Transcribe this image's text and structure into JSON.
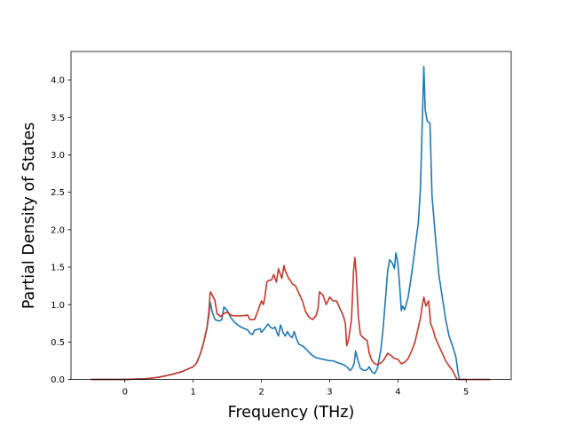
{
  "chart_data": {
    "type": "line",
    "xlabel": "Frequency (THz)",
    "ylabel": "Partial Density of States",
    "xlim": [
      -0.79,
      5.66
    ],
    "ylim": [
      0.0,
      4.38
    ],
    "xticks": [
      0,
      1,
      2,
      3,
      4,
      5
    ],
    "xtick_labels": [
      "0",
      "1",
      "2",
      "3",
      "4",
      "5"
    ],
    "yticks": [
      0.0,
      0.5,
      1.0,
      1.5,
      2.0,
      2.5,
      3.0,
      3.5,
      4.0
    ],
    "ytick_labels": [
      "0.0",
      "0.5",
      "1.0",
      "1.5",
      "2.0",
      "2.5",
      "3.0",
      "3.5",
      "4.0"
    ],
    "grid": false,
    "legend": "none",
    "series": [
      {
        "color": "#1f77b4",
        "points": [
          [
            -0.5,
            0.0
          ],
          [
            0.0,
            0.0
          ],
          [
            0.3,
            0.01
          ],
          [
            0.5,
            0.03
          ],
          [
            0.7,
            0.07
          ],
          [
            0.85,
            0.11
          ],
          [
            1.0,
            0.17
          ],
          [
            1.05,
            0.22
          ],
          [
            1.1,
            0.33
          ],
          [
            1.15,
            0.48
          ],
          [
            1.2,
            0.68
          ],
          [
            1.23,
            0.85
          ],
          [
            1.25,
            1.03
          ],
          [
            1.28,
            0.9
          ],
          [
            1.32,
            0.8
          ],
          [
            1.38,
            0.78
          ],
          [
            1.42,
            0.8
          ],
          [
            1.45,
            0.97
          ],
          [
            1.5,
            0.92
          ],
          [
            1.55,
            0.83
          ],
          [
            1.6,
            0.77
          ],
          [
            1.65,
            0.73
          ],
          [
            1.7,
            0.7
          ],
          [
            1.75,
            0.68
          ],
          [
            1.8,
            0.66
          ],
          [
            1.83,
            0.62
          ],
          [
            1.87,
            0.6
          ],
          [
            1.9,
            0.66
          ],
          [
            1.95,
            0.67
          ],
          [
            1.98,
            0.68
          ],
          [
            2.0,
            0.63
          ],
          [
            2.03,
            0.66
          ],
          [
            2.07,
            0.71
          ],
          [
            2.1,
            0.74
          ],
          [
            2.13,
            0.7
          ],
          [
            2.17,
            0.68
          ],
          [
            2.2,
            0.7
          ],
          [
            2.23,
            0.62
          ],
          [
            2.25,
            0.58
          ],
          [
            2.28,
            0.73
          ],
          [
            2.32,
            0.62
          ],
          [
            2.35,
            0.58
          ],
          [
            2.38,
            0.64
          ],
          [
            2.42,
            0.58
          ],
          [
            2.45,
            0.56
          ],
          [
            2.48,
            0.64
          ],
          [
            2.52,
            0.53
          ],
          [
            2.55,
            0.47
          ],
          [
            2.6,
            0.45
          ],
          [
            2.65,
            0.41
          ],
          [
            2.7,
            0.36
          ],
          [
            2.75,
            0.32
          ],
          [
            2.8,
            0.29
          ],
          [
            2.9,
            0.27
          ],
          [
            3.0,
            0.25
          ],
          [
            3.05,
            0.25
          ],
          [
            3.1,
            0.23
          ],
          [
            3.2,
            0.2
          ],
          [
            3.25,
            0.17
          ],
          [
            3.3,
            0.12
          ],
          [
            3.33,
            0.15
          ],
          [
            3.36,
            0.22
          ],
          [
            3.38,
            0.38
          ],
          [
            3.41,
            0.27
          ],
          [
            3.45,
            0.15
          ],
          [
            3.5,
            0.12
          ],
          [
            3.55,
            0.13
          ],
          [
            3.58,
            0.17
          ],
          [
            3.62,
            0.1
          ],
          [
            3.66,
            0.08
          ],
          [
            3.7,
            0.15
          ],
          [
            3.75,
            0.4
          ],
          [
            3.78,
            0.65
          ],
          [
            3.82,
            1.1
          ],
          [
            3.85,
            1.45
          ],
          [
            3.88,
            1.6
          ],
          [
            3.92,
            1.55
          ],
          [
            3.95,
            1.48
          ],
          [
            3.97,
            1.69
          ],
          [
            4.0,
            1.55
          ],
          [
            4.03,
            1.2
          ],
          [
            4.05,
            0.92
          ],
          [
            4.07,
            0.98
          ],
          [
            4.1,
            0.93
          ],
          [
            4.15,
            1.1
          ],
          [
            4.2,
            1.4
          ],
          [
            4.25,
            1.75
          ],
          [
            4.3,
            2.1
          ],
          [
            4.33,
            2.55
          ],
          [
            4.35,
            3.2
          ],
          [
            4.38,
            4.18
          ],
          [
            4.4,
            3.6
          ],
          [
            4.43,
            3.45
          ],
          [
            4.47,
            3.42
          ],
          [
            4.5,
            2.45
          ],
          [
            4.55,
            1.9
          ],
          [
            4.6,
            1.4
          ],
          [
            4.65,
            1.1
          ],
          [
            4.7,
            0.8
          ],
          [
            4.75,
            0.58
          ],
          [
            4.8,
            0.45
          ],
          [
            4.85,
            0.3
          ],
          [
            4.88,
            0.1
          ],
          [
            4.9,
            0.0
          ],
          [
            5.0,
            0.0
          ]
        ]
      },
      {
        "color": "#c0392b",
        "points": [
          [
            -0.5,
            0.0
          ],
          [
            0.0,
            0.0
          ],
          [
            0.3,
            0.01
          ],
          [
            0.5,
            0.03
          ],
          [
            0.7,
            0.07
          ],
          [
            0.85,
            0.11
          ],
          [
            1.0,
            0.17
          ],
          [
            1.05,
            0.22
          ],
          [
            1.1,
            0.33
          ],
          [
            1.15,
            0.48
          ],
          [
            1.2,
            0.68
          ],
          [
            1.23,
            0.9
          ],
          [
            1.25,
            1.17
          ],
          [
            1.28,
            1.13
          ],
          [
            1.32,
            1.05
          ],
          [
            1.35,
            0.88
          ],
          [
            1.4,
            0.84
          ],
          [
            1.45,
            0.88
          ],
          [
            1.5,
            0.9
          ],
          [
            1.55,
            0.86
          ],
          [
            1.6,
            0.85
          ],
          [
            1.7,
            0.85
          ],
          [
            1.8,
            0.86
          ],
          [
            1.83,
            0.8
          ],
          [
            1.87,
            0.8
          ],
          [
            1.9,
            0.8
          ],
          [
            1.95,
            0.92
          ],
          [
            2.0,
            1.05
          ],
          [
            2.03,
            1.0
          ],
          [
            2.05,
            1.1
          ],
          [
            2.08,
            1.3
          ],
          [
            2.1,
            1.32
          ],
          [
            2.15,
            1.33
          ],
          [
            2.18,
            1.4
          ],
          [
            2.22,
            1.3
          ],
          [
            2.25,
            1.48
          ],
          [
            2.28,
            1.4
          ],
          [
            2.3,
            1.35
          ],
          [
            2.33,
            1.52
          ],
          [
            2.35,
            1.45
          ],
          [
            2.4,
            1.35
          ],
          [
            2.42,
            1.33
          ],
          [
            2.45,
            1.28
          ],
          [
            2.5,
            1.25
          ],
          [
            2.55,
            1.15
          ],
          [
            2.6,
            1.05
          ],
          [
            2.65,
            0.9
          ],
          [
            2.7,
            0.83
          ],
          [
            2.75,
            0.8
          ],
          [
            2.8,
            0.85
          ],
          [
            2.83,
            0.95
          ],
          [
            2.85,
            1.17
          ],
          [
            2.9,
            1.13
          ],
          [
            2.93,
            1.05
          ],
          [
            2.95,
            1.0
          ],
          [
            3.0,
            1.1
          ],
          [
            3.05,
            1.05
          ],
          [
            3.1,
            1.05
          ],
          [
            3.15,
            0.95
          ],
          [
            3.2,
            0.85
          ],
          [
            3.23,
            0.75
          ],
          [
            3.25,
            0.45
          ],
          [
            3.28,
            0.55
          ],
          [
            3.32,
            0.8
          ],
          [
            3.35,
            1.45
          ],
          [
            3.37,
            1.63
          ],
          [
            3.39,
            1.4
          ],
          [
            3.42,
            0.85
          ],
          [
            3.45,
            0.6
          ],
          [
            3.5,
            0.55
          ],
          [
            3.55,
            0.52
          ],
          [
            3.58,
            0.35
          ],
          [
            3.62,
            0.25
          ],
          [
            3.66,
            0.21
          ],
          [
            3.7,
            0.2
          ],
          [
            3.75,
            0.22
          ],
          [
            3.8,
            0.27
          ],
          [
            3.85,
            0.35
          ],
          [
            3.9,
            0.32
          ],
          [
            3.95,
            0.28
          ],
          [
            4.0,
            0.27
          ],
          [
            4.05,
            0.21
          ],
          [
            4.1,
            0.23
          ],
          [
            4.15,
            0.28
          ],
          [
            4.2,
            0.38
          ],
          [
            4.25,
            0.5
          ],
          [
            4.3,
            0.7
          ],
          [
            4.33,
            0.82
          ],
          [
            4.35,
            0.95
          ],
          [
            4.38,
            1.1
          ],
          [
            4.41,
            0.98
          ],
          [
            4.45,
            1.05
          ],
          [
            4.48,
            0.75
          ],
          [
            4.52,
            0.65
          ],
          [
            4.55,
            0.55
          ],
          [
            4.6,
            0.45
          ],
          [
            4.65,
            0.35
          ],
          [
            4.7,
            0.25
          ],
          [
            4.75,
            0.18
          ],
          [
            4.8,
            0.12
          ],
          [
            4.85,
            0.03
          ],
          [
            4.87,
            0.0
          ],
          [
            5.0,
            0.0
          ],
          [
            5.35,
            0.0
          ]
        ]
      }
    ]
  }
}
